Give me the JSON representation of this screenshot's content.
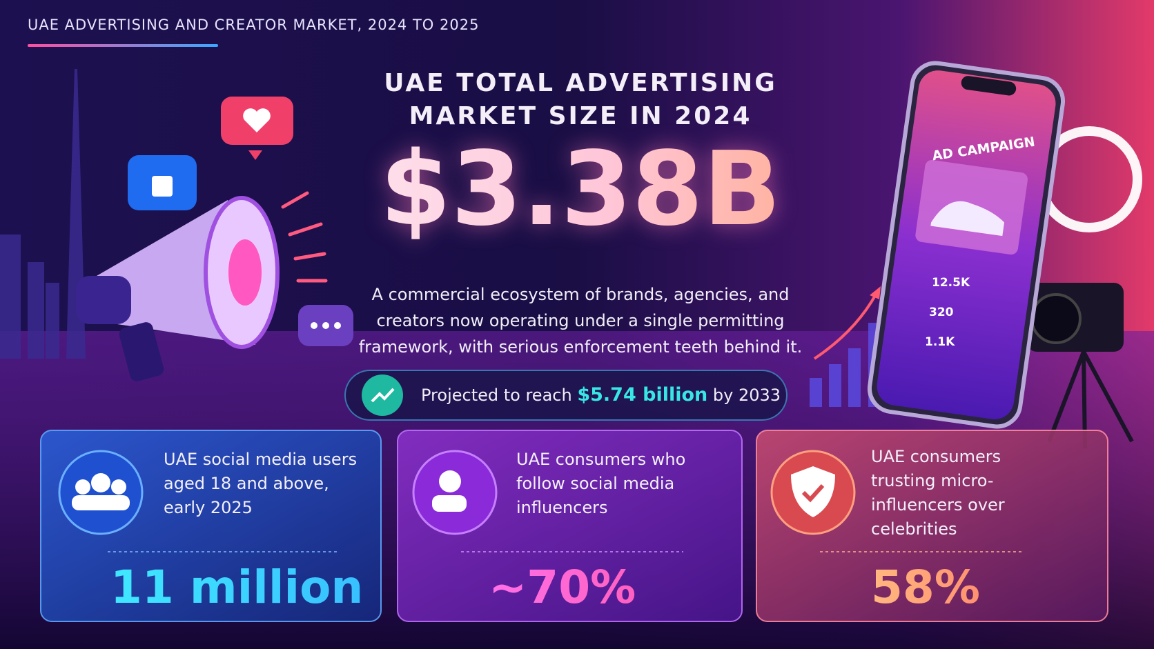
{
  "header": {
    "title": "UAE ADVERTISING AND CREATOR MARKET, 2024 TO 2025"
  },
  "hero": {
    "heading": [
      "UAE TOTAL ADVERTISING",
      "MARKET SIZE IN 2024"
    ],
    "value": "$3.38B",
    "description": [
      "A commercial ecosystem of brands, agencies, and",
      "creators now operating under a single permitting",
      "framework, with serious enforcement teeth behind it."
    ],
    "projection": {
      "prefix": "Projected to reach",
      "highlight": "$5.74 billion",
      "suffix": "by 2033"
    }
  },
  "phone": {
    "label": "AD CAMPAIGN",
    "stats": [
      "12.5K",
      "320",
      "1.1K"
    ]
  },
  "cards": [
    {
      "lines": [
        "UAE social media users",
        "aged 18 and above,",
        "early 2025"
      ],
      "value": "11 million"
    },
    {
      "lines": [
        "UAE consumers who",
        "follow social media",
        "influencers"
      ],
      "value": "~70%"
    },
    {
      "lines": [
        "UAE consumers",
        "trusting micro-",
        "influencers over",
        "celebrities"
      ],
      "value": "58%"
    }
  ]
}
